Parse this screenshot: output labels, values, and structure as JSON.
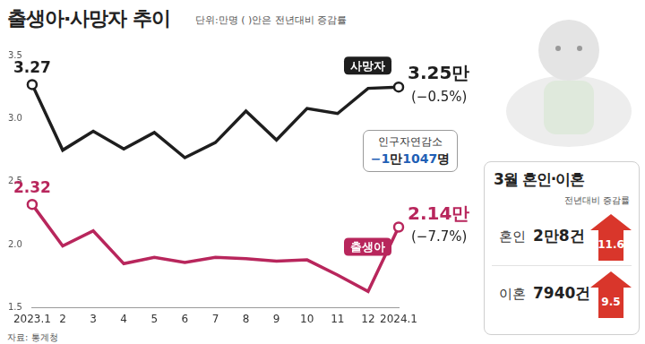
{
  "chart_data": {
    "type": "line",
    "title": "출생아·사망자 추이",
    "subtitle": "단위:만명 ( )안은 전년대비 증감률",
    "categories": [
      "2023.1",
      "2",
      "3",
      "4",
      "5",
      "6",
      "7",
      "8",
      "9",
      "10",
      "11",
      "12",
      "2024.1"
    ],
    "series": [
      {
        "name": "사망자",
        "color": "#1e1e1e",
        "values": [
          3.27,
          2.75,
          2.9,
          2.76,
          2.89,
          2.69,
          2.81,
          3.06,
          2.83,
          3.08,
          3.04,
          3.24,
          3.25
        ],
        "value_labels": [
          "3.27",
          null,
          null,
          null,
          null,
          null,
          null,
          null,
          null,
          null,
          null,
          null,
          "3.25만"
        ],
        "change": "(−0.5%)"
      },
      {
        "name": "출생아",
        "color": "#b8265c",
        "values": [
          2.32,
          1.99,
          2.11,
          1.85,
          1.9,
          1.86,
          1.9,
          1.89,
          1.87,
          1.88,
          1.76,
          1.63,
          2.14
        ],
        "value_labels": [
          "2.32",
          null,
          null,
          null,
          null,
          null,
          null,
          null,
          null,
          null,
          null,
          null,
          "2.14만"
        ],
        "change": "(−7.7%)"
      }
    ],
    "ylim": [
      1.5,
      3.5
    ],
    "yticks": [
      1.5,
      {
        "value": 2,
        "label": "2.0"
      },
      2.5,
      {
        "value": 3,
        "label": "3.0"
      },
      3.5
    ],
    "grid": false,
    "data_labels": true,
    "marker": "circle",
    "annotation": {
      "label": "인구자연감소",
      "value": "−1만1047명"
    },
    "source": "자료: 통계청"
  },
  "side_panel": {
    "title": "3월 혼인·이혼",
    "subtitle": "전년대비 증감률",
    "rows": [
      {
        "label": "혼인",
        "value": "2만8건",
        "change": 11.6
      },
      {
        "label": "이혼",
        "value": "7940건",
        "change": 9.5
      }
    ]
  }
}
